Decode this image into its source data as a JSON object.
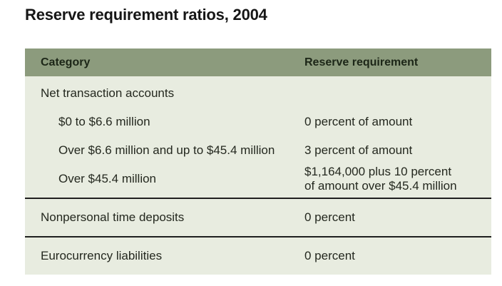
{
  "page_title": "Reserve requirement ratios, 2004",
  "colors": {
    "page_bg": "#ffffff",
    "header_bg": "#8c9b7d",
    "header_text": "#1c2617",
    "body_bg": "#e8ece0",
    "body_text": "#24281f",
    "divider": "#1f1f1f"
  },
  "table": {
    "columns": [
      {
        "key": "category",
        "label": "Category"
      },
      {
        "key": "requirement",
        "label": "Reserve requirement"
      }
    ],
    "sections": [
      {
        "name": "net-transaction-accounts",
        "rows": [
          {
            "category": "Net transaction accounts",
            "requirement": "",
            "indent": false
          },
          {
            "category": "$0 to $6.6 million",
            "requirement": "0 percent of amount",
            "indent": true
          },
          {
            "category": "Over $6.6 million and up to $45.4 million",
            "requirement": "3 percent of amount",
            "indent": true
          },
          {
            "category": "Over $45.4 million",
            "requirement": "$1,164,000 plus 10 percent\nof amount over $45.4 million",
            "indent": true
          }
        ]
      },
      {
        "name": "nonpersonal-time-deposits",
        "rows": [
          {
            "category": "Nonpersonal time deposits",
            "requirement": "0 percent",
            "indent": false
          }
        ]
      },
      {
        "name": "eurocurrency-liabilities",
        "rows": [
          {
            "category": "Eurocurrency liabilities",
            "requirement": "0 percent",
            "indent": false
          }
        ]
      }
    ]
  },
  "chart_data": {
    "type": "table",
    "title": "Reserve requirement ratios, 2004",
    "columns": [
      "Category",
      "Reserve requirement"
    ],
    "rows": [
      [
        "Net transaction accounts",
        ""
      ],
      [
        "$0 to $6.6 million",
        "0 percent of amount"
      ],
      [
        "Over $6.6 million and up to $45.4 million",
        "3 percent of amount"
      ],
      [
        "Over $45.4 million",
        "$1,164,000 plus 10 percent of amount over $45.4 million"
      ],
      [
        "Nonpersonal time deposits",
        "0 percent"
      ],
      [
        "Eurocurrency liabilities",
        "0 percent"
      ]
    ]
  }
}
